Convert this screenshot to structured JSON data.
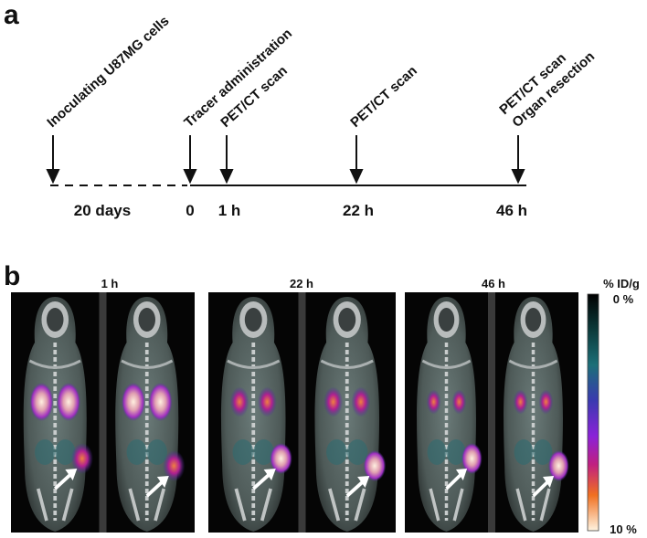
{
  "panel_a": {
    "label": "a",
    "events": [
      {
        "lines": [
          "Inoculating U87MG cells"
        ]
      },
      {
        "lines": [
          "Tracer administration"
        ]
      },
      {
        "lines": [
          "PET/CT scan"
        ]
      },
      {
        "lines": [
          "PET/CT scan"
        ]
      },
      {
        "lines": [
          "PET/CT scan",
          "Organ resection"
        ]
      }
    ],
    "time_labels": [
      "20 days",
      "0",
      "1 h",
      "22 h",
      "46 h"
    ]
  },
  "panel_b": {
    "label": "b",
    "timepoints": [
      "1 h",
      "22 h",
      "46 h"
    ],
    "colorbar": {
      "title": "% ID/g",
      "top": "0 %",
      "bottom": "10 %"
    }
  }
}
